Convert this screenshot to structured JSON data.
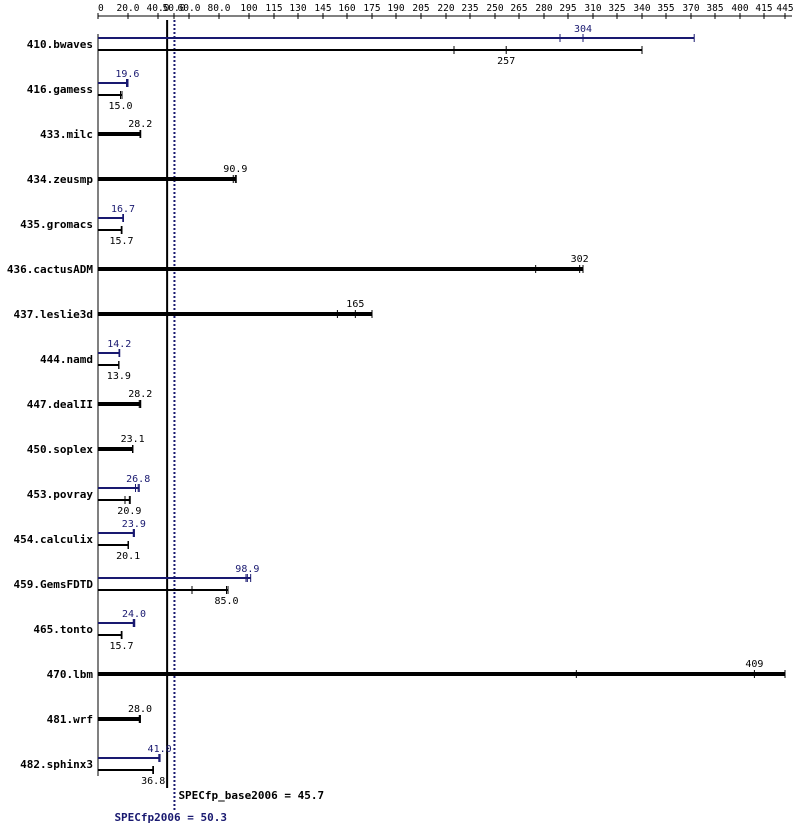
{
  "colors": {
    "base": "#000000",
    "peak": "#191970",
    "background": "#ffffff"
  },
  "chart_data": {
    "type": "bar",
    "xlim": [
      0,
      445
    ],
    "tick_labels": [
      "0",
      "20.0",
      "40.0",
      "50.0",
      "60.0",
      "80.0",
      "100",
      "115",
      "130",
      "145",
      "160",
      "175",
      "190",
      "205",
      "220",
      "235",
      "250",
      "265",
      "280",
      "295",
      "310",
      "325",
      "340",
      "355",
      "370",
      "385",
      "400",
      "415",
      "445"
    ],
    "reference_lines": [
      {
        "name": "SPECfp_base2006 = 45.7",
        "value": 45.7,
        "color": "#000000",
        "style": "solid"
      },
      {
        "name": "SPECfp2006 = 50.3",
        "value": 50.3,
        "color": "#191970",
        "style": "dotted"
      }
    ],
    "benchmarks": [
      {
        "name": "410.bwaves",
        "base": {
          "label": "257",
          "value": 257,
          "min": 225,
          "max": 340
        },
        "peak": {
          "label": "304",
          "value": 304,
          "min": 290,
          "max": 372
        }
      },
      {
        "name": "416.gamess",
        "base": {
          "label": "15.0",
          "value": 15.0,
          "min": 15.0,
          "max": 16.0
        },
        "peak": {
          "label": "19.6",
          "value": 19.6,
          "min": 19.0,
          "max": 20.0
        }
      },
      {
        "name": "433.milc",
        "base": {
          "label": "28.2",
          "value": 28.2,
          "min": 28.0,
          "max": 28.5
        },
        "peak": null
      },
      {
        "name": "434.zeusmp",
        "base": {
          "label": "90.9",
          "value": 90.9,
          "min": 89.5,
          "max": 91.5
        },
        "peak": null
      },
      {
        "name": "435.gromacs",
        "base": {
          "label": "15.7",
          "value": 15.7,
          "min": 15.5,
          "max": 16.0
        },
        "peak": {
          "label": "16.7",
          "value": 16.7,
          "min": 16.5,
          "max": 17.0
        }
      },
      {
        "name": "436.cactusADM",
        "base": {
          "label": "302",
          "value": 302,
          "min": 275,
          "max": 304
        },
        "peak": null
      },
      {
        "name": "437.leslie3d",
        "base": {
          "label": "165",
          "value": 165,
          "min": 154,
          "max": 175
        },
        "peak": null
      },
      {
        "name": "444.namd",
        "base": {
          "label": "13.9",
          "value": 13.9,
          "min": 13.8,
          "max": 14.0
        },
        "peak": {
          "label": "14.2",
          "value": 14.2,
          "min": 14.0,
          "max": 14.5
        }
      },
      {
        "name": "447.dealII",
        "base": {
          "label": "28.2",
          "value": 28.2,
          "min": 27.5,
          "max": 28.5
        },
        "peak": null
      },
      {
        "name": "450.soplex",
        "base": {
          "label": "23.1",
          "value": 23.1,
          "min": 23.0,
          "max": 23.3
        },
        "peak": null
      },
      {
        "name": "453.povray",
        "base": {
          "label": "20.9",
          "value": 20.9,
          "min": 18.0,
          "max": 21.5
        },
        "peak": {
          "label": "26.8",
          "value": 26.8,
          "min": 25.0,
          "max": 27.5
        }
      },
      {
        "name": "454.calculix",
        "base": {
          "label": "20.1",
          "value": 20.1,
          "min": 20.0,
          "max": 20.3
        },
        "peak": {
          "label": "23.9",
          "value": 23.9,
          "min": 23.5,
          "max": 24.3
        }
      },
      {
        "name": "459.GemsFDTD",
        "base": {
          "label": "85.0",
          "value": 85.0,
          "min": 62.0,
          "max": 86.0
        },
        "peak": {
          "label": "98.9",
          "value": 98.9,
          "min": 98.0,
          "max": 101.0
        }
      },
      {
        "name": "465.tonto",
        "base": {
          "label": "15.7",
          "value": 15.7,
          "min": 15.5,
          "max": 16.0
        },
        "peak": {
          "label": "24.0",
          "value": 24.0,
          "min": 23.5,
          "max": 24.5
        }
      },
      {
        "name": "470.lbm",
        "base": {
          "label": "409",
          "value": 409,
          "min": 300,
          "max": 445
        },
        "peak": null
      },
      {
        "name": "481.wrf",
        "base": {
          "label": "28.0",
          "value": 28.0,
          "min": 27.5,
          "max": 28.3
        },
        "peak": null
      },
      {
        "name": "482.sphinx3",
        "base": {
          "label": "36.8",
          "value": 36.8,
          "min": 36.5,
          "max": 37.0
        },
        "peak": {
          "label": "41.0",
          "value": 41.0,
          "min": 40.5,
          "max": 41.3
        }
      }
    ]
  }
}
